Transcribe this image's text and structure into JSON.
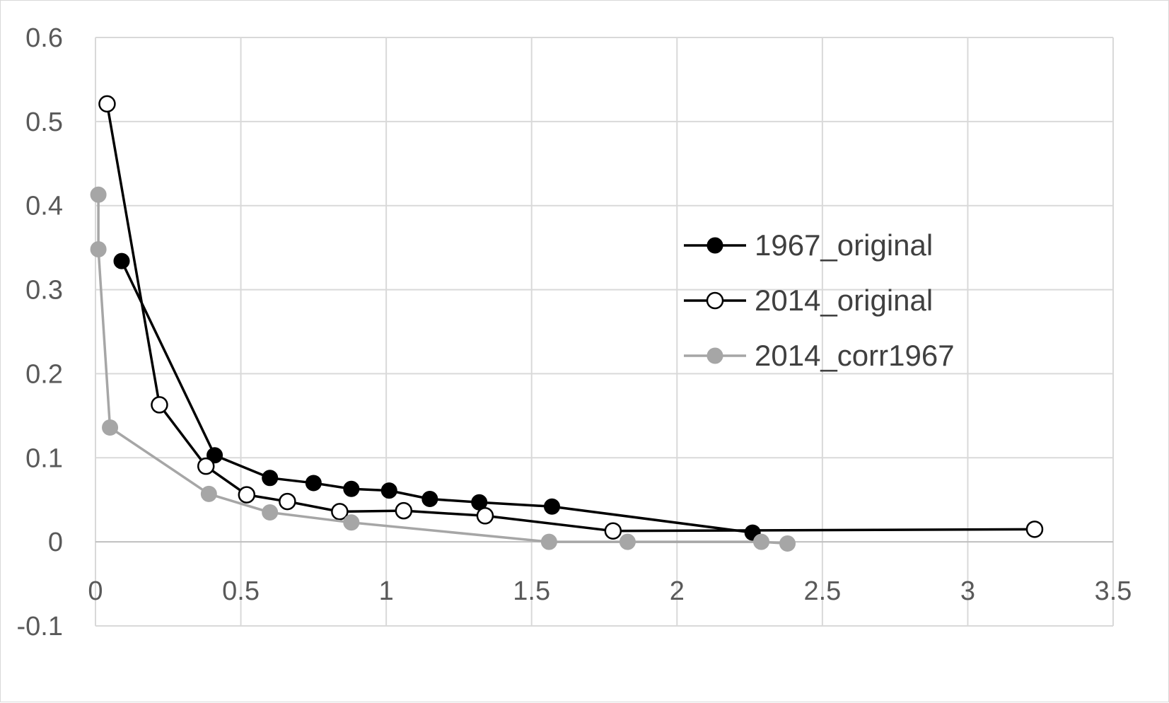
{
  "chart_data": {
    "type": "scatter",
    "title": "",
    "xlabel": "",
    "ylabel": "",
    "xlim": [
      0,
      3.5
    ],
    "ylim": [
      -0.1,
      0.6
    ],
    "xticks": [
      0,
      0.5,
      1,
      1.5,
      2,
      2.5,
      3,
      3.5
    ],
    "yticks": [
      -0.1,
      0,
      0.1,
      0.2,
      0.3,
      0.4,
      0.5,
      0.6
    ],
    "x_tick_labels": [
      "0",
      "0.5",
      "1",
      "1.5",
      "2",
      "2.5",
      "3",
      "3.5"
    ],
    "y_tick_labels": [
      "-0.1",
      "0",
      "0.1",
      "0.2",
      "0.3",
      "0.4",
      "0.5",
      "0.6"
    ],
    "grid": true,
    "legend_position": "right",
    "series": [
      {
        "name": "1967_original",
        "color": "#000000",
        "marker": "filled-circle",
        "x": [
          0.09,
          0.41,
          0.6,
          0.75,
          0.88,
          1.01,
          1.15,
          1.32,
          1.57,
          2.26
        ],
        "y": [
          0.334,
          0.103,
          0.076,
          0.07,
          0.063,
          0.061,
          0.051,
          0.047,
          0.042,
          0.011
        ]
      },
      {
        "name": "2014_original",
        "color": "#000000",
        "marker": "hollow-circle",
        "x": [
          0.04,
          0.22,
          0.38,
          0.52,
          0.66,
          0.84,
          1.06,
          1.34,
          1.78,
          3.23
        ],
        "y": [
          0.521,
          0.163,
          0.09,
          0.056,
          0.048,
          0.036,
          0.037,
          0.031,
          0.013,
          0.015
        ]
      },
      {
        "name": "2014_corr1967",
        "color": "#a6a6a6",
        "marker": "filled-circle",
        "x": [
          0.01,
          0.01,
          0.05,
          0.39,
          0.6,
          0.88,
          1.56,
          1.83,
          2.29,
          2.38
        ],
        "y": [
          0.413,
          0.348,
          0.136,
          0.057,
          0.035,
          0.023,
          0.0,
          0.0,
          0.0,
          -0.002
        ]
      }
    ]
  }
}
